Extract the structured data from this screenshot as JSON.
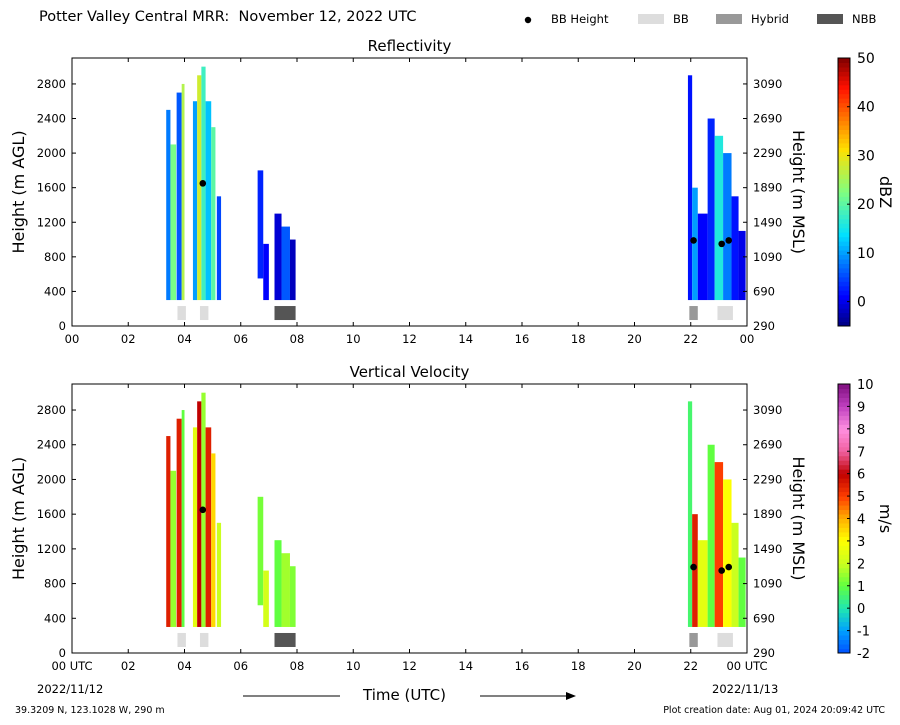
{
  "header": {
    "title": "Potter Valley Central MRR:  November 12, 2022 UTC",
    "legend": [
      {
        "label": "BB Height",
        "color": "#000000",
        "kind": "dot"
      },
      {
        "label": "BB",
        "color": "#dddddd",
        "kind": "box"
      },
      {
        "label": "Hybrid",
        "color": "#999999",
        "kind": "box"
      },
      {
        "label": "NBB",
        "color": "#555555",
        "kind": "box"
      }
    ]
  },
  "footer": {
    "location": "39.3209 N, 123.1028 W, 290 m",
    "created": "Plot creation date: Aug 01, 2024 20:09:42 UTC",
    "start_date": "2022/11/12",
    "end_date": "2022/11/13",
    "xlabel": "Time (UTC)"
  },
  "chart_data": [
    {
      "type": "heatmap",
      "title": "Reflectivity",
      "xlabel": "Time (UTC)",
      "ylabel": "Height (m AGL)",
      "y2label": "Height (m MSL)",
      "xlim": [
        0,
        24
      ],
      "ylim": [
        0,
        3100
      ],
      "xticks": [
        "00",
        "02",
        "04",
        "06",
        "08",
        "10",
        "12",
        "14",
        "16",
        "18",
        "20",
        "22",
        "00"
      ],
      "yticks": [
        0,
        400,
        800,
        1200,
        1600,
        2000,
        2400,
        2800
      ],
      "y2ticks": [
        290,
        690,
        1090,
        1490,
        1890,
        2290,
        2690,
        3090
      ],
      "colorbar": {
        "label": "dBZ",
        "min": -5,
        "max": 50,
        "ticks": [
          0,
          10,
          20,
          30,
          40,
          50
        ],
        "colormap": "jet"
      },
      "echoes": [
        {
          "t0": 3.35,
          "t1": 3.5,
          "bottom": 300,
          "top": 2500,
          "value": 8
        },
        {
          "t0": 3.5,
          "t1": 3.7,
          "bottom": 300,
          "top": 2100,
          "value": 22
        },
        {
          "t0": 3.72,
          "t1": 3.9,
          "bottom": 300,
          "top": 2700,
          "value": 6
        },
        {
          "t0": 3.9,
          "t1": 4.0,
          "bottom": 300,
          "top": 2800,
          "value": 26
        },
        {
          "t0": 4.3,
          "t1": 4.45,
          "bottom": 300,
          "top": 2600,
          "value": 10
        },
        {
          "t0": 4.45,
          "t1": 4.6,
          "bottom": 300,
          "top": 2900,
          "value": 28
        },
        {
          "t0": 4.6,
          "t1": 4.75,
          "bottom": 300,
          "top": 3000,
          "value": 18
        },
        {
          "t0": 4.75,
          "t1": 4.95,
          "bottom": 300,
          "top": 2600,
          "value": 12
        },
        {
          "t0": 4.95,
          "t1": 5.1,
          "bottom": 300,
          "top": 2300,
          "value": 20
        },
        {
          "t0": 5.15,
          "t1": 5.3,
          "bottom": 300,
          "top": 1500,
          "value": 5
        },
        {
          "t0": 6.6,
          "t1": 6.8,
          "bottom": 550,
          "top": 1800,
          "value": 3
        },
        {
          "t0": 6.8,
          "t1": 7.0,
          "bottom": 300,
          "top": 950,
          "value": 1
        },
        {
          "t0": 7.2,
          "t1": 7.45,
          "bottom": 300,
          "top": 1300,
          "value": -1
        },
        {
          "t0": 7.45,
          "t1": 7.75,
          "bottom": 300,
          "top": 1150,
          "value": 6
        },
        {
          "t0": 7.75,
          "t1": 7.95,
          "bottom": 300,
          "top": 1000,
          "value": -2
        },
        {
          "t0": 21.9,
          "t1": 22.05,
          "bottom": 300,
          "top": 2900,
          "value": 2
        },
        {
          "t0": 22.05,
          "t1": 22.25,
          "bottom": 300,
          "top": 1600,
          "value": 10
        },
        {
          "t0": 22.25,
          "t1": 22.6,
          "bottom": 300,
          "top": 1300,
          "value": 1
        },
        {
          "t0": 22.6,
          "t1": 22.85,
          "bottom": 300,
          "top": 2400,
          "value": 3
        },
        {
          "t0": 22.85,
          "t1": 23.15,
          "bottom": 300,
          "top": 2200,
          "value": 16
        },
        {
          "t0": 23.15,
          "t1": 23.45,
          "bottom": 300,
          "top": 2000,
          "value": 8
        },
        {
          "t0": 23.45,
          "t1": 23.7,
          "bottom": 300,
          "top": 1500,
          "value": 2
        },
        {
          "t0": 23.7,
          "t1": 23.95,
          "bottom": 300,
          "top": 1100,
          "value": 0
        }
      ],
      "bb_height": [
        {
          "t": 4.65,
          "h": 1650
        },
        {
          "t": 22.1,
          "h": 990
        },
        {
          "t": 23.1,
          "h": 950
        },
        {
          "t": 23.35,
          "h": 990
        }
      ],
      "bands": [
        {
          "t0": 3.75,
          "t1": 4.05,
          "kind": "BB"
        },
        {
          "t0": 4.55,
          "t1": 4.85,
          "kind": "BB"
        },
        {
          "t0": 7.2,
          "t1": 7.95,
          "kind": "NBB"
        },
        {
          "t0": 21.95,
          "t1": 22.25,
          "kind": "Hybrid"
        },
        {
          "t0": 22.95,
          "t1": 23.5,
          "kind": "BB"
        }
      ]
    },
    {
      "type": "heatmap",
      "title": "Vertical Velocity",
      "xlabel": "Time (UTC)",
      "ylabel": "Height (m AGL)",
      "y2label": "Height (m MSL)",
      "xlim": [
        0,
        24
      ],
      "ylim": [
        0,
        3100
      ],
      "xticks": [
        "00 UTC",
        "02",
        "04",
        "06",
        "08",
        "10",
        "12",
        "14",
        "16",
        "18",
        "20",
        "22",
        "00 UTC"
      ],
      "yticks": [
        0,
        400,
        800,
        1200,
        1600,
        2000,
        2400,
        2800
      ],
      "y2ticks": [
        290,
        690,
        1090,
        1490,
        1890,
        2290,
        2690,
        3090
      ],
      "colorbar": {
        "label": "m/s",
        "min": -2,
        "max": 10,
        "ticks": [
          -2,
          -1,
          0,
          1,
          2,
          3,
          4,
          5,
          6,
          7,
          8,
          9,
          10
        ],
        "colormap": "velocity"
      },
      "echoes": [
        {
          "t0": 3.35,
          "t1": 3.5,
          "bottom": 300,
          "top": 2500,
          "value": 5.5
        },
        {
          "t0": 3.5,
          "t1": 3.7,
          "bottom": 300,
          "top": 2100,
          "value": 1.5
        },
        {
          "t0": 3.72,
          "t1": 3.9,
          "bottom": 300,
          "top": 2700,
          "value": 5.5
        },
        {
          "t0": 3.9,
          "t1": 4.0,
          "bottom": 300,
          "top": 2800,
          "value": 1.0
        },
        {
          "t0": 4.3,
          "t1": 4.45,
          "bottom": 300,
          "top": 2600,
          "value": 2.5
        },
        {
          "t0": 4.45,
          "t1": 4.6,
          "bottom": 300,
          "top": 2900,
          "value": 6.0
        },
        {
          "t0": 4.6,
          "t1": 4.75,
          "bottom": 300,
          "top": 3000,
          "value": 1.5
        },
        {
          "t0": 4.75,
          "t1": 4.95,
          "bottom": 300,
          "top": 2600,
          "value": 5.5
        },
        {
          "t0": 4.95,
          "t1": 5.1,
          "bottom": 300,
          "top": 2300,
          "value": 3.5
        },
        {
          "t0": 5.15,
          "t1": 5.3,
          "bottom": 300,
          "top": 1500,
          "value": 2.0
        },
        {
          "t0": 6.6,
          "t1": 6.8,
          "bottom": 550,
          "top": 1800,
          "value": 1.2
        },
        {
          "t0": 6.8,
          "t1": 7.0,
          "bottom": 300,
          "top": 950,
          "value": 2.2
        },
        {
          "t0": 7.2,
          "t1": 7.45,
          "bottom": 300,
          "top": 1300,
          "value": 1.0
        },
        {
          "t0": 7.45,
          "t1": 7.75,
          "bottom": 300,
          "top": 1150,
          "value": 1.6
        },
        {
          "t0": 7.75,
          "t1": 7.95,
          "bottom": 300,
          "top": 1000,
          "value": 1.3
        },
        {
          "t0": 21.9,
          "t1": 22.05,
          "bottom": 300,
          "top": 2900,
          "value": 0.6
        },
        {
          "t0": 22.05,
          "t1": 22.25,
          "bottom": 300,
          "top": 1600,
          "value": 5.5
        },
        {
          "t0": 22.25,
          "t1": 22.6,
          "bottom": 300,
          "top": 1300,
          "value": 2.5
        },
        {
          "t0": 22.6,
          "t1": 22.85,
          "bottom": 300,
          "top": 2400,
          "value": 1.0
        },
        {
          "t0": 22.85,
          "t1": 23.15,
          "bottom": 300,
          "top": 2200,
          "value": 5.0
        },
        {
          "t0": 23.15,
          "t1": 23.45,
          "bottom": 300,
          "top": 2000,
          "value": 3.0
        },
        {
          "t0": 23.45,
          "t1": 23.7,
          "bottom": 300,
          "top": 1500,
          "value": 2.0
        },
        {
          "t0": 23.7,
          "t1": 23.95,
          "bottom": 300,
          "top": 1100,
          "value": 1.0
        }
      ],
      "bb_height": [
        {
          "t": 4.65,
          "h": 1650
        },
        {
          "t": 22.1,
          "h": 990
        },
        {
          "t": 23.1,
          "h": 950
        },
        {
          "t": 23.35,
          "h": 990
        }
      ],
      "bands": [
        {
          "t0": 3.75,
          "t1": 4.05,
          "kind": "BB"
        },
        {
          "t0": 4.55,
          "t1": 4.85,
          "kind": "BB"
        },
        {
          "t0": 7.2,
          "t1": 7.95,
          "kind": "NBB"
        },
        {
          "t0": 21.95,
          "t1": 22.25,
          "kind": "Hybrid"
        },
        {
          "t0": 22.95,
          "t1": 23.5,
          "kind": "BB"
        }
      ]
    }
  ]
}
